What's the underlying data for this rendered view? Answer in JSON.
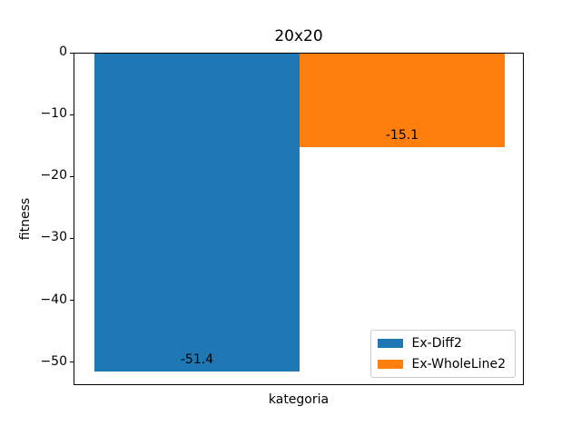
{
  "chart_data": {
    "type": "bar",
    "title": "20x20",
    "xlabel": "kategoria",
    "ylabel": "fitness",
    "categories": [
      "kategoria"
    ],
    "series": [
      {
        "name": "Ex-Diff2",
        "values": [
          -51.4
        ],
        "value_label": "-51.4",
        "color": "#1f77b4"
      },
      {
        "name": "Ex-WholeLine2",
        "values": [
          -15.1
        ],
        "value_label": "-15.1",
        "color": "#ff7f0e"
      }
    ],
    "ylim": [
      -53.7,
      0
    ],
    "yticks": [
      0,
      -10,
      -20,
      -30,
      -40,
      -50
    ],
    "ytick_labels": [
      "0",
      "−10",
      "−20",
      "−30",
      "−40",
      "−50"
    ],
    "grid": false,
    "legend": {
      "position": "lower right",
      "entries": [
        "Ex-Diff2",
        "Ex-WholeLine2"
      ]
    }
  },
  "colors": {
    "background": "#ffffff",
    "spine": "#000000",
    "legend_border": "#cccccc",
    "text": "#000000"
  }
}
